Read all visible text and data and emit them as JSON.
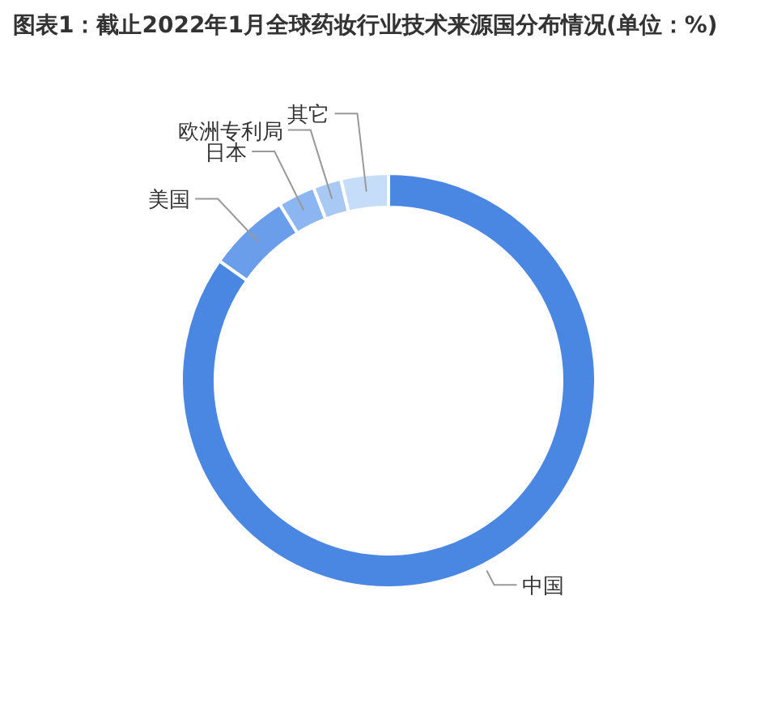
{
  "chart_data": {
    "type": "donut",
    "title": "图表1：截止2022年1月全球药妆行业技术来源国分布情况(单位：%)",
    "categories": [
      "中国",
      "美国",
      "日本",
      "欧洲专利局",
      "其它"
    ],
    "values": [
      84.8,
      6.4,
      2.9,
      2.2,
      3.7
    ],
    "colors": [
      "#4a87e2",
      "#6a9eea",
      "#8cb6f1",
      "#a9c9f5",
      "#c6ddfa"
    ]
  }
}
